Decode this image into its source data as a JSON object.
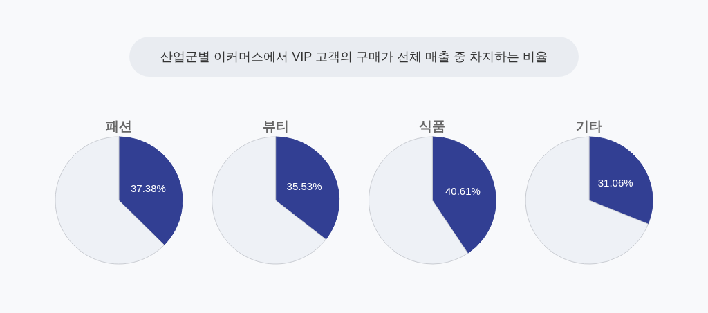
{
  "chart_data": [
    {
      "type": "other",
      "title": "산업군별 이커머스에서 VIP 고객의 구매가 전체 매출 중 차지하는 비율"
    },
    {
      "type": "pie",
      "title": "패션",
      "categories": [
        null,
        null
      ],
      "values": [
        37.38,
        62.62
      ],
      "colors": [
        "#323f93",
        "#eef1f6"
      ],
      "value_labels": [
        "37.38%",
        null
      ]
    },
    {
      "type": "pie",
      "title": "뷰티",
      "categories": [
        null,
        null
      ],
      "values": [
        35.53,
        64.47
      ],
      "colors": [
        "#323f93",
        "#eef1f6"
      ],
      "value_labels": [
        "35.53%",
        null
      ]
    },
    {
      "type": "pie",
      "title": "식품",
      "categories": [
        null,
        null
      ],
      "values": [
        40.61,
        59.39
      ],
      "colors": [
        "#323f93",
        "#eef1f6"
      ],
      "value_labels": [
        "40.61%",
        null
      ]
    },
    {
      "type": "pie",
      "title": "기타",
      "categories": [
        null,
        null
      ],
      "values": [
        31.06,
        68.94
      ],
      "colors": [
        "#323f93",
        "#eef1f6"
      ],
      "value_labels": [
        "31.06%",
        null
      ]
    }
  ]
}
